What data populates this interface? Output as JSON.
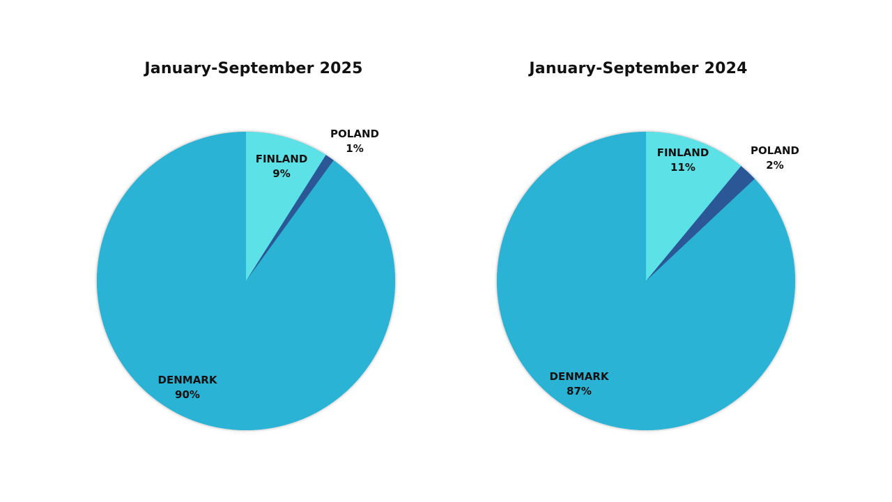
{
  "chart_data": [
    {
      "type": "pie",
      "title": "January-September 2025",
      "slices": [
        {
          "label": "FINLAND",
          "value": 9,
          "value_label": "9%",
          "color": "#5ce1e6"
        },
        {
          "label": "POLAND",
          "value": 1,
          "value_label": "1%",
          "color": "#2b5797"
        },
        {
          "label": "DENMARK",
          "value": 90,
          "value_label": "90%",
          "color": "#2ab3d4"
        }
      ],
      "start": "12 o'clock",
      "direction": "clockwise"
    },
    {
      "type": "pie",
      "title": "January-September 2024",
      "slices": [
        {
          "label": "FINLAND",
          "value": 11,
          "value_label": "11%",
          "color": "#5ce1e6"
        },
        {
          "label": "POLAND",
          "value": 2,
          "value_label": "2%",
          "color": "#2b5797"
        },
        {
          "label": "DENMARK",
          "value": 87,
          "value_label": "87%",
          "color": "#2ab3d4"
        }
      ],
      "start": "12 o'clock",
      "direction": "clockwise"
    }
  ]
}
